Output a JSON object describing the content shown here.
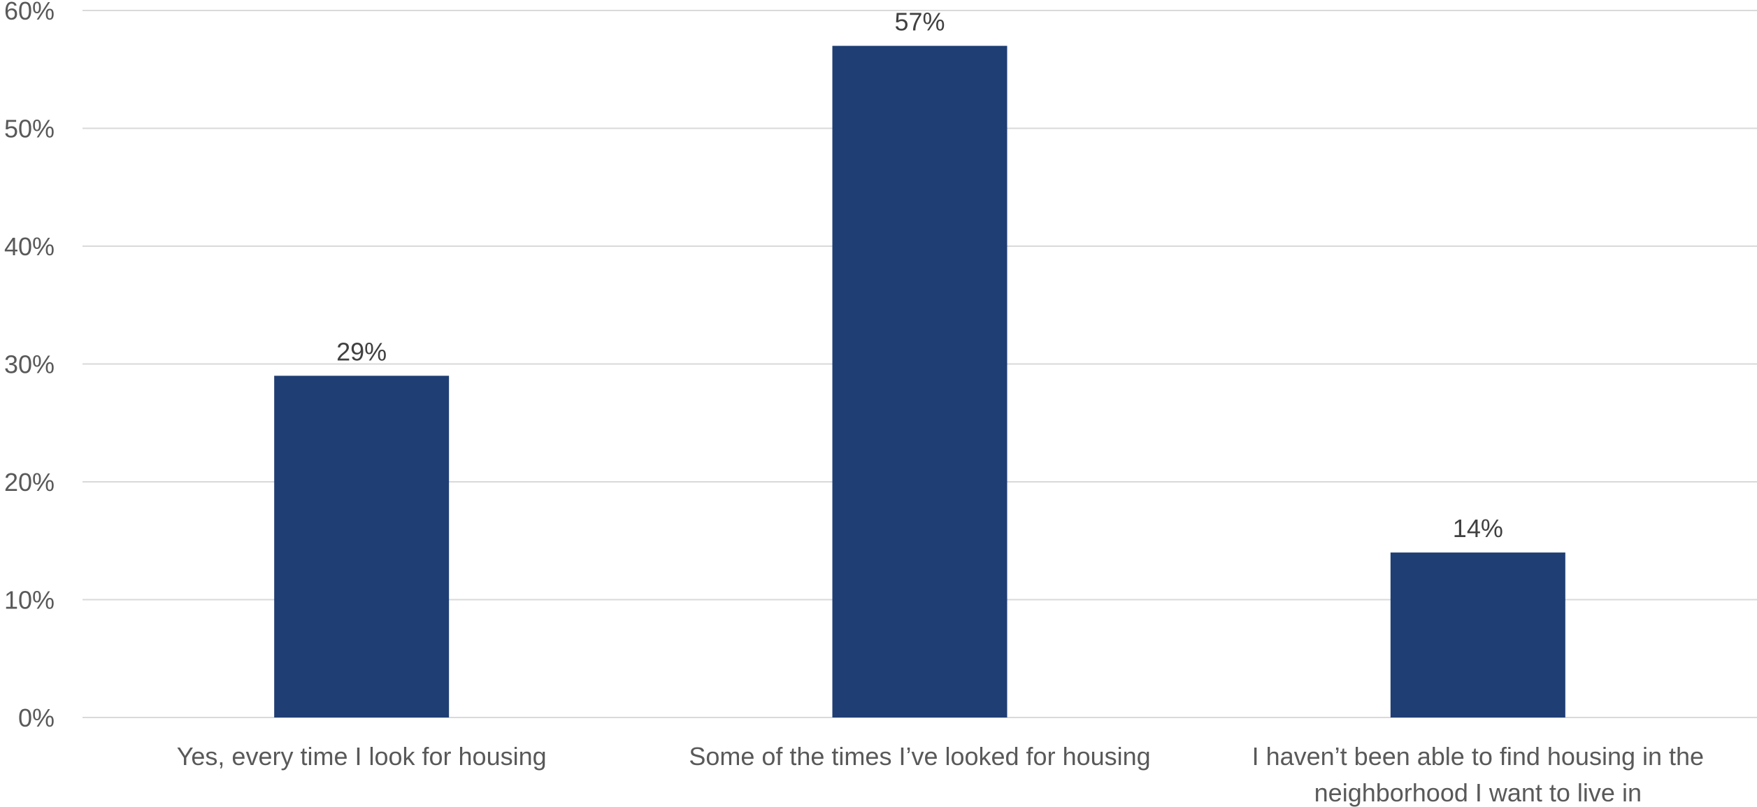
{
  "chart_data": {
    "type": "bar",
    "categories": [
      [
        "Yes, every time I look for housing"
      ],
      [
        "Some of the times I’ve looked for housing"
      ],
      [
        "I haven’t been able to find housing in the",
        "neighborhood I want to live in"
      ]
    ],
    "values": [
      29,
      57,
      14
    ],
    "value_labels": [
      "29%",
      "57%",
      "14%"
    ],
    "y_ticks": [
      "0%",
      "10%",
      "20%",
      "30%",
      "40%",
      "50%",
      "60%"
    ],
    "ylim": [
      0,
      60
    ],
    "grid": true,
    "legend": "none",
    "bar_color": "#1f3e73"
  }
}
